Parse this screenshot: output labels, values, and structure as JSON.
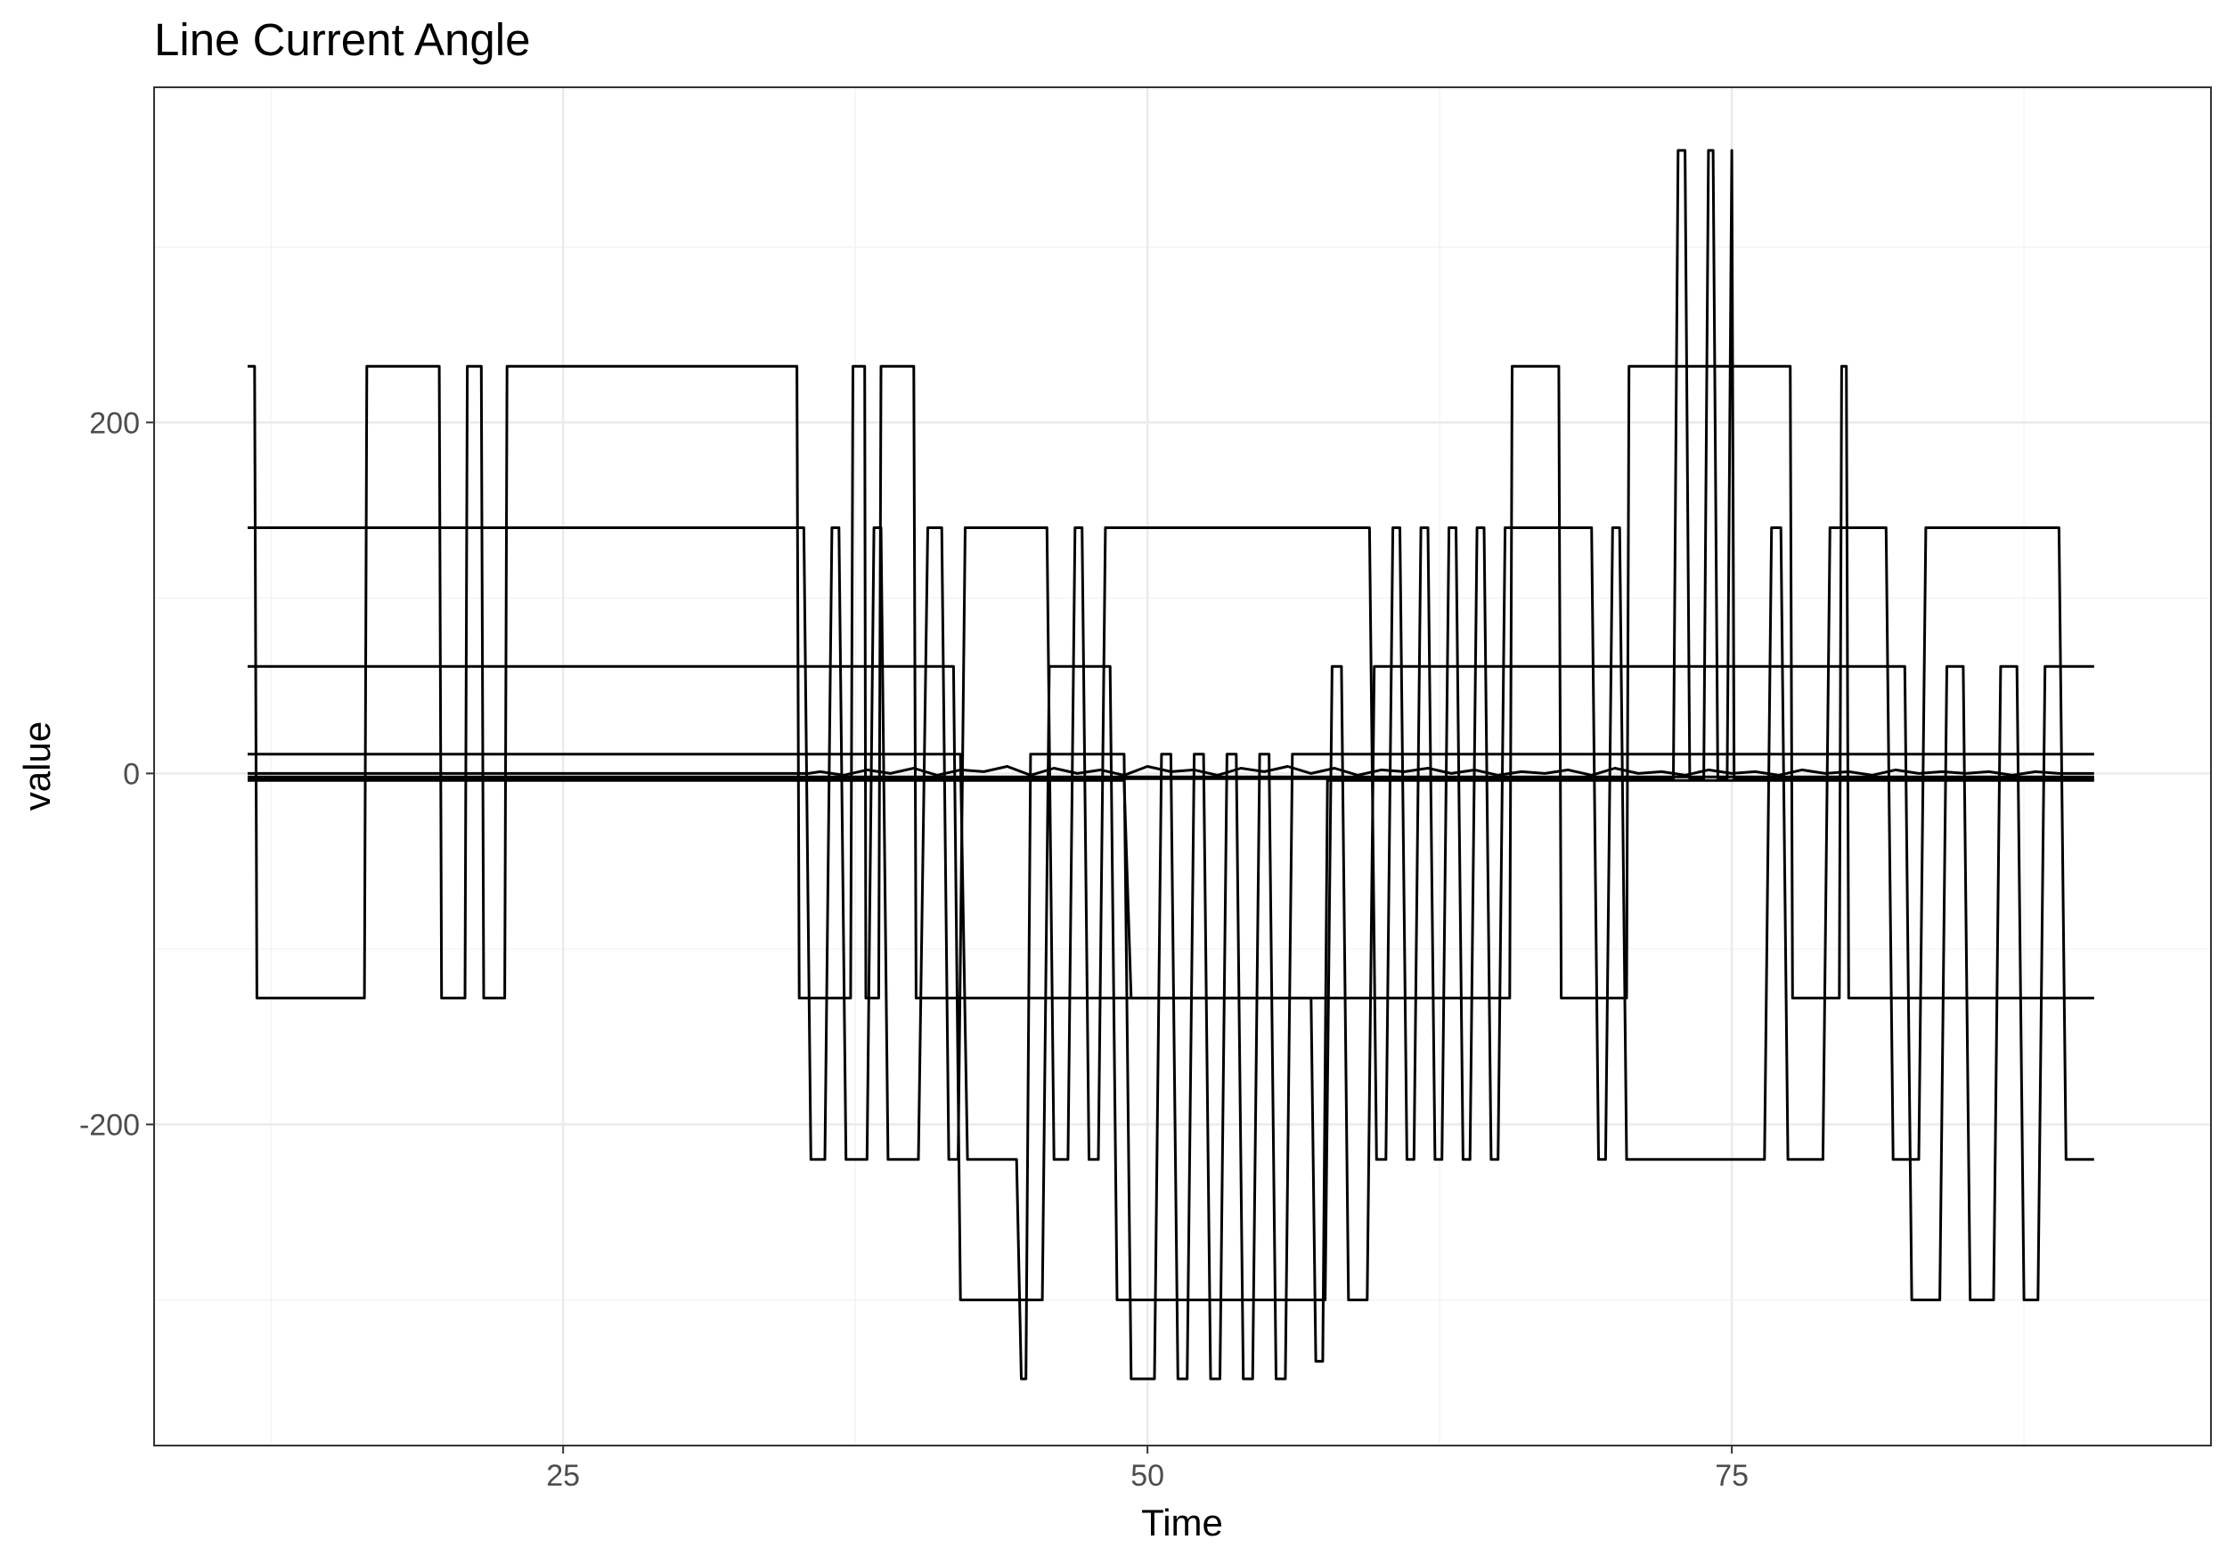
{
  "chart_data": {
    "type": "line",
    "title": "Line Current Angle",
    "xlabel": "Time",
    "ylabel": "value",
    "xlim": [
      7.5,
      95.5
    ],
    "ylim": [
      -383,
      391
    ],
    "x_ticks": [
      25,
      50,
      75
    ],
    "x_tick_labels": [
      "25",
      "50",
      "75"
    ],
    "y_ticks": [
      -200,
      0,
      200
    ],
    "y_tick_labels": [
      "-200",
      "0",
      "200"
    ],
    "x_minor": [
      12.5,
      37.5,
      62.5,
      87.5
    ],
    "y_minor": [
      -300,
      -100,
      100,
      300
    ],
    "grid": true,
    "legend": "none",
    "line_color": "#000000",
    "series": [
      {
        "x": [
          11.5,
          89.5,
          89.6,
          90.5
        ],
        "values": [
          -2,
          -2,
          -2,
          -2
        ]
      },
      {
        "x": [
          11.5,
          35.5,
          36.0,
          37.0,
          38.0,
          39.0,
          40.0,
          41.0,
          42.0,
          43.0,
          44.0,
          45.0,
          46.0,
          47.0,
          48.0,
          49.0,
          50.0,
          51.0,
          52.0,
          53.0,
          54.0,
          55.0,
          56.0,
          57.0,
          58.0,
          59.0,
          60.0,
          61.0,
          62.0,
          63.0,
          64.0,
          65.0,
          66.0,
          67.0,
          68.0,
          69.0,
          70.0,
          71.0,
          72.0,
          73.0,
          74.0,
          75.0,
          76.0,
          77.0,
          78.0,
          79.0,
          80.0,
          81.0,
          82.0,
          83.0,
          84.0,
          85.0,
          86.0,
          87.0,
          88.0,
          89.0,
          90.5
        ],
        "values": [
          0,
          0,
          1,
          -1,
          2,
          0,
          3,
          -1,
          2,
          1,
          4,
          -1,
          3,
          0,
          2,
          -1,
          4,
          1,
          2,
          -1,
          3,
          1,
          4,
          0,
          3,
          -1,
          2,
          1,
          3,
          0,
          2,
          -1,
          1,
          0,
          2,
          -1,
          3,
          0,
          1,
          -1,
          2,
          0,
          1,
          -1,
          2,
          0,
          1,
          -1,
          2,
          0,
          1,
          0,
          1,
          -1,
          1,
          0,
          0
        ]
      },
      {
        "x": [
          11.5,
          11.8,
          11.9,
          16.5,
          16.6,
          19.7,
          19.8,
          20.8,
          20.9,
          21.5,
          21.6,
          22.5,
          22.6,
          35.0,
          35.1,
          37.3,
          37.4,
          37.9,
          37.95,
          38.5,
          38.6,
          40.0,
          40.1,
          65.5,
          65.6,
          67.6,
          67.7,
          70.5,
          70.6,
          77.5,
          77.6,
          79.6,
          79.7,
          79.9,
          80.0,
          90.5
        ],
        "values": [
          232,
          232,
          -128,
          -128,
          232,
          232,
          -128,
          -128,
          232,
          232,
          -128,
          -128,
          232,
          232,
          -128,
          -128,
          232,
          232,
          -128,
          -128,
          232,
          232,
          -128,
          -128,
          232,
          232,
          -128,
          -128,
          232,
          232,
          -128,
          -128,
          232,
          232,
          -128,
          -128
        ]
      },
      {
        "x": [
          11.5,
          35.3,
          35.6,
          36.2,
          36.5,
          36.8,
          37.1,
          38.0,
          38.3,
          38.6,
          38.9,
          40.2,
          40.6,
          41.2,
          41.5,
          41.9,
          42.2,
          45.7,
          46.0,
          46.6,
          46.9,
          47.2,
          47.5,
          47.9,
          48.2,
          59.5,
          59.8,
          60.2,
          60.5,
          60.8,
          61.1,
          61.4,
          61.7,
          62.0,
          62.3,
          62.6,
          62.9,
          63.2,
          63.5,
          63.8,
          64.1,
          64.4,
          64.7,
          65.0,
          65.3,
          69.0,
          69.3,
          69.6,
          69.9,
          70.2,
          70.5,
          76.4,
          76.7,
          77.1,
          77.4,
          78.9,
          79.2,
          81.6,
          81.9,
          83.0,
          83.3,
          89.0,
          89.3,
          90.5
        ],
        "values": [
          140,
          140,
          -220,
          -220,
          140,
          140,
          -220,
          -220,
          140,
          140,
          -220,
          -220,
          140,
          140,
          -220,
          -220,
          140,
          140,
          -220,
          -220,
          140,
          140,
          -220,
          -220,
          140,
          140,
          -220,
          -220,
          140,
          140,
          -220,
          -220,
          140,
          140,
          -220,
          -220,
          140,
          140,
          -220,
          -220,
          140,
          140,
          -220,
          -220,
          140,
          140,
          -220,
          -220,
          140,
          140,
          -220,
          -220,
          140,
          140,
          -220,
          -220,
          140,
          140,
          -220,
          -220,
          140,
          140,
          -220,
          -220
        ]
      },
      {
        "x": [
          11.5,
          41.7,
          42.0,
          44.2,
          44.5,
          45.5,
          45.8,
          48.4,
          48.7,
          57.6,
          57.9,
          58.3,
          58.6,
          59.4,
          59.7,
          82.4,
          82.7,
          83.9,
          84.2,
          84.9,
          85.2,
          86.2,
          86.5,
          87.2,
          87.5,
          88.1,
          88.4,
          89.1,
          89.4,
          90.5
        ],
        "values": [
          61,
          61,
          -300,
          -300,
          -300,
          -300,
          61,
          61,
          -300,
          -300,
          61,
          61,
          -300,
          -300,
          61,
          61,
          -300,
          -300,
          61,
          61,
          -300,
          -300,
          61,
          61,
          -300,
          -300,
          61,
          61,
          61,
          61
        ]
      },
      {
        "x": [
          11.5,
          42.0,
          42.3,
          44.4,
          44.6,
          44.8,
          45.0,
          49.0,
          49.3,
          50.3,
          50.6,
          51.0,
          51.3,
          51.7,
          52.0,
          52.4,
          52.7,
          53.1,
          53.4,
          53.8,
          54.1,
          54.5,
          54.8,
          55.2,
          55.5,
          55.9,
          56.2,
          57.2,
          57.3,
          90.5
        ],
        "values": [
          11,
          11,
          -220,
          -220,
          -345,
          -345,
          11,
          11,
          -345,
          -345,
          11,
          11,
          -345,
          -345,
          11,
          11,
          -345,
          -345,
          11,
          11,
          -345,
          -345,
          11,
          11,
          -345,
          -345,
          11,
          11,
          11,
          11
        ]
      },
      {
        "x": [
          11.5,
          49.0,
          49.3,
          57.0,
          57.2,
          57.5,
          57.7,
          90.5
        ],
        "values": [
          -4,
          -4,
          -128,
          -128,
          -335,
          -335,
          -4,
          -4
        ]
      },
      {
        "x": [
          11.5,
          69.0,
          72.5,
          72.7,
          73.0,
          73.2,
          73.8,
          74.0,
          74.2,
          74.4,
          74.8,
          75.0,
          75.1,
          90.5
        ],
        "values": [
          -3,
          -3,
          -3,
          355,
          355,
          -3,
          -3,
          355,
          355,
          -3,
          -3,
          355,
          -3,
          -3
        ]
      }
    ]
  }
}
